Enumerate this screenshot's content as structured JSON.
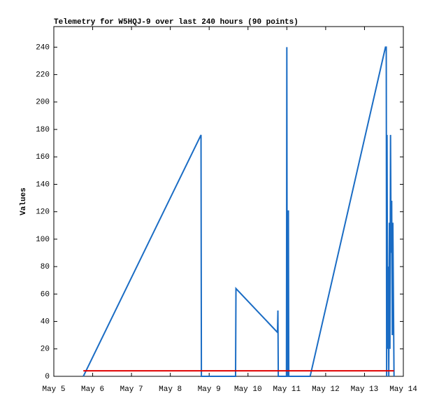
{
  "chart_data": {
    "type": "line",
    "title": "Telemetry for W5HQJ-9 over last 240 hours (90 points)",
    "y_label": "Values",
    "xlim": [
      5,
      14
    ],
    "xticks": [
      {
        "value": 5,
        "label": "May 5"
      },
      {
        "value": 6,
        "label": "May 6"
      },
      {
        "value": 7,
        "label": "May 7"
      },
      {
        "value": 8,
        "label": "May 8"
      },
      {
        "value": 9,
        "label": "May 9"
      },
      {
        "value": 10,
        "label": "May 10"
      },
      {
        "value": 11,
        "label": "May 11"
      },
      {
        "value": 12,
        "label": "May 12"
      },
      {
        "value": 13,
        "label": "May 13"
      },
      {
        "value": 14,
        "label": "May 14"
      }
    ],
    "ylim": [
      0,
      255
    ],
    "yticks": [
      0,
      20,
      40,
      60,
      80,
      100,
      120,
      140,
      160,
      180,
      200,
      220,
      240
    ],
    "series": [
      {
        "color": "#1a6cc4",
        "x": [
          5.76,
          8.79,
          8.8,
          9.68,
          9.69,
          10.76,
          10.77,
          10.78,
          10.99,
          11.0,
          11.01,
          11.03,
          11.04,
          11.05,
          11.6,
          13.54,
          13.56,
          13.57,
          13.58,
          13.595,
          13.61,
          13.625,
          13.64,
          13.655,
          13.67,
          13.685,
          13.7,
          13.715,
          13.73,
          13.745,
          13.76
        ],
        "values": [
          0,
          176,
          0,
          0,
          64,
          32,
          48,
          0,
          0,
          240,
          0,
          0,
          121,
          0,
          0,
          240,
          240,
          0,
          176,
          20,
          80,
          0,
          112,
          20,
          176,
          90,
          128,
          30,
          112,
          56,
          0
        ]
      },
      {
        "color": "#e00000",
        "x": [
          5.76,
          13.76
        ],
        "values": [
          4,
          4
        ]
      }
    ]
  }
}
